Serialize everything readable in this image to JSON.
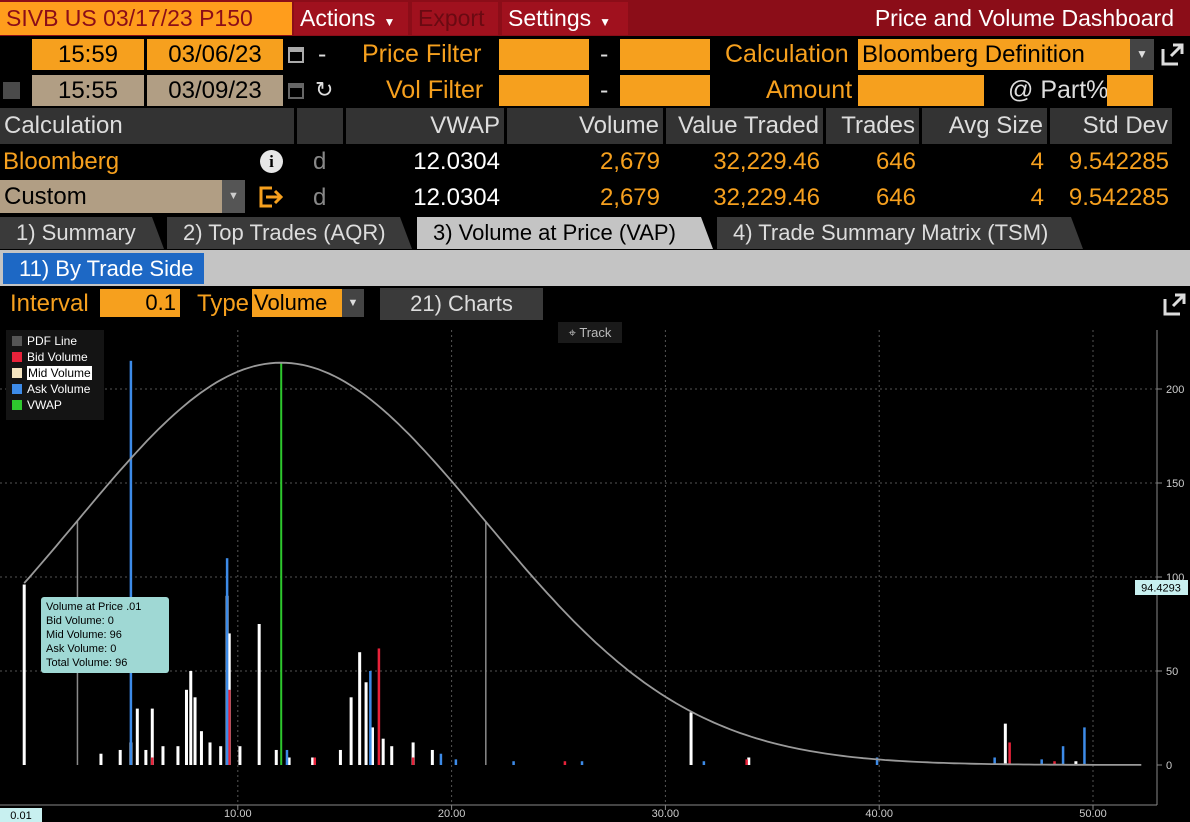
{
  "menubar": {
    "ticker": "SIVB US 03/17/23 P150",
    "actions": "Actions",
    "export": "Export",
    "settings": "Settings",
    "title": "Price and Volume Dashboard"
  },
  "filters": {
    "time1": "15:59",
    "date1": "03/06/23",
    "dash1": "-",
    "price_filter_label": "Price Filter",
    "price_filter_min": "",
    "dash2": "-",
    "price_filter_max": "",
    "calculation_label": "Calculation",
    "calculation_value": "Bloomberg Definition",
    "time2": "15:55",
    "date2": "03/09/23",
    "vol_filter_label": "Vol Filter",
    "vol_filter_min": "",
    "dash3": "-",
    "vol_filter_max": "",
    "amount_label": "Amount",
    "amount_value": "",
    "part_label": "@ Part%",
    "part_value": ""
  },
  "table": {
    "headers": [
      "Calculation",
      "",
      "VWAP",
      "Volume",
      "Value Traded",
      "Trades",
      "Avg Size",
      "Std Dev"
    ],
    "rows": [
      {
        "calc": "Bloomberg",
        "flag": "d",
        "vwap": "12.0304",
        "volume": "2,679",
        "value": "32,229.46",
        "trades": "646",
        "avg": "4",
        "std": "9.542285"
      },
      {
        "calc": "Custom",
        "flag": "d",
        "vwap": "12.0304",
        "volume": "2,679",
        "value": "32,229.46",
        "trades": "646",
        "avg": "4",
        "std": "9.542285"
      }
    ]
  },
  "tabs": [
    "1) Summary",
    "2) Top Trades (AQR)",
    "3) Volume at Price (VAP)",
    "4) Trade Summary Matrix (TSM)"
  ],
  "subtab": "11) By Trade Side",
  "controls": {
    "interval_label": "Interval",
    "interval_value": "0.1",
    "type_label": "Type",
    "type_value": "Volume",
    "charts_button": "21) Charts"
  },
  "chart_ui": {
    "track_label": "Track",
    "tooltip": {
      "title": "Volume at Price .01",
      "bid": "Bid Volume:  0",
      "mid": "Mid Volume:  96",
      "ask": "Ask Volume:  0",
      "total": "Total Volume:  96"
    }
  },
  "colors": {
    "accent": "#f6a01e",
    "menu": "#8b0d18",
    "bid": "#e8223a",
    "mid": "#ffffff",
    "ask": "#3d8be8",
    "vwap": "#2ec82e",
    "pdf": "#9a9a9a",
    "tab_selected": "#1d68c5"
  },
  "chart_data": {
    "type": "bar",
    "legend": [
      "PDF Line",
      "Bid Volume",
      "Mid Volume",
      "Ask Volume",
      "VWAP"
    ],
    "legend_position": "top-left",
    "x_ticks": [
      "10.00",
      "20.00",
      "30.00",
      "40.00",
      "50.00"
    ],
    "y_ticks": [
      "0",
      "50",
      "100",
      "150",
      "200"
    ],
    "xlim": [
      0,
      53
    ],
    "ylim": [
      0,
      230
    ],
    "x_min_label": "0.01",
    "last_value_label": "94.4293",
    "vwap": 12.0304,
    "pdf_peak": {
      "x": 12.03,
      "y": 214
    },
    "pdf_guides": [
      2.5,
      21.6,
      31.2
    ],
    "series": [
      {
        "name": "Bid Volume",
        "points": [
          [
            6.0,
            4
          ],
          [
            9.6,
            40
          ],
          [
            13.6,
            4
          ],
          [
            16.6,
            62
          ],
          [
            18.2,
            4
          ],
          [
            25.3,
            2
          ],
          [
            33.8,
            3
          ],
          [
            46.1,
            12
          ],
          [
            48.2,
            2
          ]
        ]
      },
      {
        "name": "Mid Volume",
        "points": [
          [
            0.01,
            96
          ],
          [
            3.6,
            6
          ],
          [
            4.5,
            8
          ],
          [
            5.0,
            12
          ],
          [
            5.3,
            30
          ],
          [
            5.7,
            8
          ],
          [
            6.0,
            30
          ],
          [
            6.5,
            10
          ],
          [
            7.2,
            10
          ],
          [
            7.6,
            40
          ],
          [
            7.8,
            50
          ],
          [
            8.0,
            36
          ],
          [
            8.3,
            18
          ],
          [
            8.7,
            12
          ],
          [
            9.2,
            10
          ],
          [
            9.5,
            90
          ],
          [
            9.6,
            70
          ],
          [
            10.1,
            10
          ],
          [
            11.0,
            75
          ],
          [
            11.8,
            8
          ],
          [
            12.4,
            4
          ],
          [
            13.5,
            4
          ],
          [
            14.8,
            8
          ],
          [
            15.3,
            36
          ],
          [
            15.7,
            60
          ],
          [
            16.0,
            44
          ],
          [
            16.3,
            20
          ],
          [
            16.8,
            14
          ],
          [
            17.2,
            10
          ],
          [
            18.2,
            12
          ],
          [
            19.1,
            8
          ],
          [
            31.2,
            28
          ],
          [
            33.9,
            4
          ],
          [
            45.9,
            22
          ],
          [
            49.2,
            2
          ]
        ]
      },
      {
        "name": "Ask Volume",
        "points": [
          [
            5.0,
            215
          ],
          [
            9.5,
            110
          ],
          [
            12.3,
            8
          ],
          [
            16.2,
            50
          ],
          [
            19.5,
            6
          ],
          [
            20.2,
            3
          ],
          [
            22.9,
            2
          ],
          [
            26.1,
            2
          ],
          [
            31.8,
            2
          ],
          [
            39.9,
            4
          ],
          [
            45.4,
            4
          ],
          [
            47.6,
            3
          ],
          [
            48.6,
            10
          ],
          [
            49.6,
            20
          ]
        ]
      }
    ]
  }
}
